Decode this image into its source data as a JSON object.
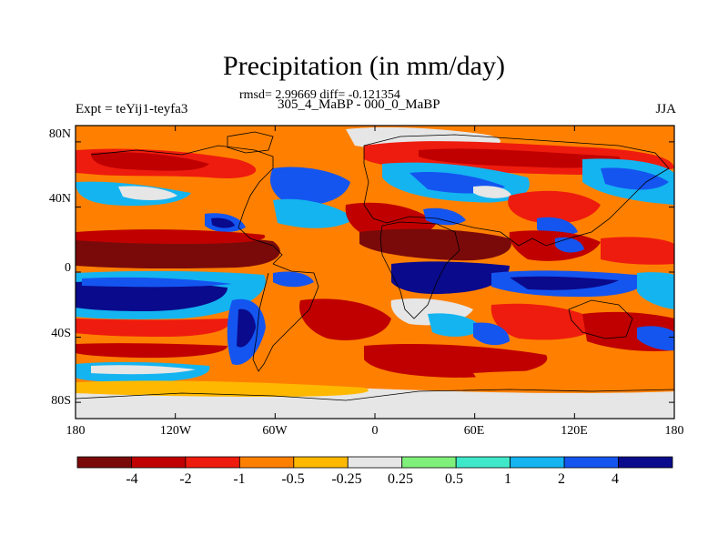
{
  "title": "Precipitation (in mm/day)",
  "stats": "rmsd= 2.99669 diff= -0.121354",
  "experiment": "Expt = teYij1-teyfa3",
  "period_diff": "305_4_MaBP - 000_0_MaBP",
  "season": "JJA",
  "colors": {
    "c1": "#7a0a0a",
    "c2": "#c00000",
    "c3": "#ee1c0e",
    "c4": "#ff8000",
    "c5": "#ffb800",
    "c6": "#e6e6e6",
    "c7": "#7ff07a",
    "c8": "#3fe8c8",
    "c9": "#14b4f0",
    "c10": "#1455f0",
    "c11": "#0a0a8c"
  },
  "chart_data": {
    "type": "heatmap",
    "title": "Precipitation (in mm/day)",
    "x_ticks": [
      "180",
      "120W",
      "60W",
      "0",
      "60E",
      "120E",
      "180"
    ],
    "y_ticks": [
      "80N",
      "40N",
      "0",
      "40S",
      "80S"
    ],
    "xlim": [
      -180,
      180
    ],
    "ylim": [
      -90,
      90
    ],
    "colorbar": {
      "labels": [
        "-4",
        "-2",
        "-1",
        "-0.5",
        "-0.25",
        "0.25",
        "0.5",
        "1",
        "2",
        "4"
      ],
      "levels": [
        -4,
        -2,
        -1,
        -0.5,
        -0.25,
        0.25,
        0.5,
        1,
        2,
        4
      ],
      "colors": [
        "#7a0a0a",
        "#c00000",
        "#ee1c0e",
        "#ff8000",
        "#ffb800",
        "#e6e6e6",
        "#7ff07a",
        "#3fe8c8",
        "#14b4f0",
        "#1455f0",
        "#0a0a8c"
      ]
    }
  }
}
